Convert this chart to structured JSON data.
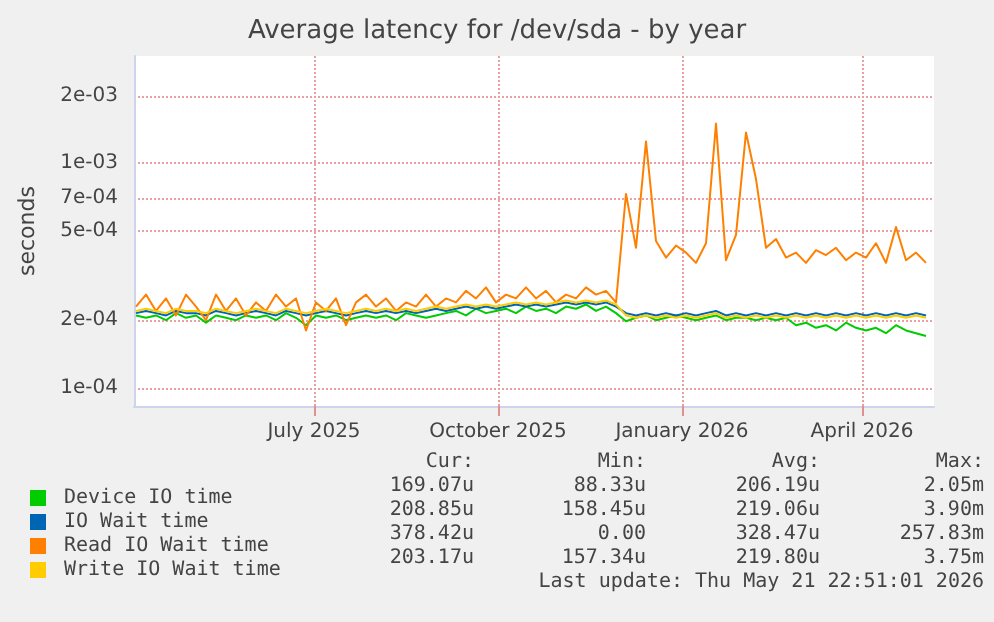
{
  "chart_data": {
    "type": "line",
    "title": "Average latency for /dev/sda - by year",
    "ylabel": "seconds",
    "log": "y",
    "grid": true,
    "legend": "bottom left",
    "marker": "none",
    "line_style": "solid",
    "xlim": [
      "2025-04-02",
      "2026-05-07"
    ],
    "xticks": [
      {
        "value": "2025-07-01",
        "label": "July 2025"
      },
      {
        "value": "2025-10-01",
        "label": "October 2025"
      },
      {
        "value": "2026-01-01",
        "label": "January 2026"
      },
      {
        "value": "2026-04-01",
        "label": "April 2026"
      }
    ],
    "ylim": [
      8.3e-05,
      0.003
    ],
    "yticks": [
      {
        "value": 0.0001,
        "label": "1e-04"
      },
      {
        "value": 0.0002,
        "label": "2e-04"
      },
      {
        "value": 0.0005,
        "label": "5e-04"
      },
      {
        "value": 0.0007,
        "label": "7e-04"
      },
      {
        "value": 0.001,
        "label": "1e-03"
      },
      {
        "value": 0.002,
        "label": "2e-03"
      }
    ],
    "x": [
      "2025-04-03",
      "2025-04-08",
      "2025-04-13",
      "2025-04-18",
      "2025-04-23",
      "2025-04-28",
      "2025-05-03",
      "2025-05-08",
      "2025-05-13",
      "2025-05-18",
      "2025-05-23",
      "2025-05-28",
      "2025-06-02",
      "2025-06-07",
      "2025-06-12",
      "2025-06-17",
      "2025-06-22",
      "2025-06-27",
      "2025-07-02",
      "2025-07-07",
      "2025-07-12",
      "2025-07-17",
      "2025-07-22",
      "2025-07-27",
      "2025-08-01",
      "2025-08-06",
      "2025-08-11",
      "2025-08-16",
      "2025-08-21",
      "2025-08-26",
      "2025-08-31",
      "2025-09-05",
      "2025-09-10",
      "2025-09-15",
      "2025-09-20",
      "2025-09-25",
      "2025-09-30",
      "2025-10-05",
      "2025-10-10",
      "2025-10-15",
      "2025-10-20",
      "2025-10-25",
      "2025-10-30",
      "2025-11-04",
      "2025-11-09",
      "2025-11-14",
      "2025-11-19",
      "2025-11-24",
      "2025-11-29",
      "2025-12-04",
      "2025-12-09",
      "2025-12-14",
      "2025-12-19",
      "2025-12-24",
      "2025-12-29",
      "2026-01-03",
      "2026-01-08",
      "2026-01-13",
      "2026-01-18",
      "2026-01-23",
      "2026-01-28",
      "2026-02-02",
      "2026-02-07",
      "2026-02-12",
      "2026-02-17",
      "2026-02-22",
      "2026-02-27",
      "2026-03-04",
      "2026-03-09",
      "2026-03-14",
      "2026-03-19",
      "2026-03-24",
      "2026-03-29",
      "2026-04-03",
      "2026-04-08",
      "2026-04-13",
      "2026-04-18",
      "2026-04-23",
      "2026-04-28",
      "2026-05-03"
    ],
    "series": [
      {
        "name": "Device IO time",
        "color": "#00cc00",
        "values": [
          0.00021,
          0.000205,
          0.00021,
          0.0002,
          0.000215,
          0.000205,
          0.00021,
          0.000195,
          0.00021,
          0.000205,
          0.0002,
          0.00021,
          0.000205,
          0.00021,
          0.0002,
          0.000215,
          0.000205,
          0.00019,
          0.00021,
          0.000205,
          0.00021,
          0.0002,
          0.000205,
          0.00021,
          0.000205,
          0.00021,
          0.0002,
          0.000215,
          0.00021,
          0.000205,
          0.00021,
          0.000215,
          0.00022,
          0.00021,
          0.000225,
          0.000215,
          0.00022,
          0.000225,
          0.000215,
          0.00023,
          0.00022,
          0.000225,
          0.000215,
          0.00023,
          0.000225,
          0.000235,
          0.00022,
          0.00023,
          0.000215,
          0.000198,
          0.000205,
          0.00021,
          0.0002,
          0.000205,
          0.00021,
          0.000205,
          0.0002,
          0.000205,
          0.00021,
          0.0002,
          0.000205,
          0.000205,
          0.0002,
          0.000205,
          0.0002,
          0.000205,
          0.00019,
          0.000195,
          0.000185,
          0.00019,
          0.00018,
          0.000195,
          0.000185,
          0.00018,
          0.000185,
          0.000175,
          0.00019,
          0.00018,
          0.000175,
          0.00017
        ]
      },
      {
        "name": "IO Wait time",
        "color": "#0066b3",
        "values": [
          0.000215,
          0.00022,
          0.000215,
          0.00021,
          0.00022,
          0.000215,
          0.000215,
          0.00021,
          0.00022,
          0.000215,
          0.00021,
          0.000215,
          0.00022,
          0.000215,
          0.00021,
          0.00022,
          0.000215,
          0.00021,
          0.000215,
          0.00022,
          0.000215,
          0.00021,
          0.000215,
          0.00022,
          0.000215,
          0.00022,
          0.000215,
          0.00022,
          0.000215,
          0.00022,
          0.000225,
          0.00022,
          0.000225,
          0.00023,
          0.000225,
          0.00023,
          0.000225,
          0.00023,
          0.000235,
          0.00023,
          0.000235,
          0.00023,
          0.000235,
          0.00024,
          0.000235,
          0.00024,
          0.000235,
          0.00024,
          0.00023,
          0.000215,
          0.00021,
          0.000215,
          0.00021,
          0.000215,
          0.00021,
          0.000215,
          0.00021,
          0.000215,
          0.00022,
          0.00021,
          0.000215,
          0.00021,
          0.000215,
          0.00021,
          0.000215,
          0.00021,
          0.000215,
          0.00021,
          0.000215,
          0.00021,
          0.000215,
          0.00021,
          0.000215,
          0.00021,
          0.000215,
          0.00021,
          0.000215,
          0.00021,
          0.000215,
          0.00021
        ]
      },
      {
        "name": "Read IO Wait time",
        "color": "#ff8000",
        "values": [
          0.00023,
          0.00026,
          0.00022,
          0.00025,
          0.00021,
          0.00026,
          0.00023,
          0.0002,
          0.00026,
          0.00022,
          0.00025,
          0.00021,
          0.00024,
          0.00022,
          0.00026,
          0.00023,
          0.00025,
          0.00018,
          0.00024,
          0.00022,
          0.00025,
          0.00019,
          0.00024,
          0.00026,
          0.00023,
          0.00025,
          0.00022,
          0.00024,
          0.00023,
          0.00026,
          0.00023,
          0.00025,
          0.00024,
          0.00027,
          0.00025,
          0.00028,
          0.00024,
          0.00026,
          0.00025,
          0.00028,
          0.00025,
          0.00027,
          0.00024,
          0.00026,
          0.00025,
          0.00028,
          0.00026,
          0.00027,
          0.00024,
          0.00073,
          0.00042,
          0.00125,
          0.00045,
          0.00038,
          0.00043,
          0.0004,
          0.00036,
          0.00044,
          0.0015,
          0.00037,
          0.00048,
          0.00137,
          0.00085,
          0.00042,
          0.00046,
          0.00038,
          0.0004,
          0.00036,
          0.00041,
          0.00039,
          0.00042,
          0.00037,
          0.0004,
          0.00038,
          0.00044,
          0.00036,
          0.00052,
          0.00037,
          0.0004,
          0.00036
        ]
      },
      {
        "name": "Write IO Wait time",
        "color": "#ffcc00",
        "values": [
          0.00022,
          0.000225,
          0.00022,
          0.000215,
          0.000225,
          0.00022,
          0.00022,
          0.000215,
          0.000225,
          0.00022,
          0.000215,
          0.00022,
          0.000225,
          0.00022,
          0.000215,
          0.000225,
          0.00022,
          0.000215,
          0.00022,
          0.000225,
          0.00022,
          0.000215,
          0.00022,
          0.000225,
          0.00022,
          0.000225,
          0.00022,
          0.000225,
          0.00022,
          0.000225,
          0.00023,
          0.000225,
          0.00023,
          0.000235,
          0.00023,
          0.000235,
          0.00023,
          0.000235,
          0.00024,
          0.000235,
          0.00024,
          0.000235,
          0.00024,
          0.000245,
          0.00024,
          0.000245,
          0.00024,
          0.000245,
          0.000235,
          0.00021,
          0.000205,
          0.00021,
          0.000205,
          0.00021,
          0.000205,
          0.00021,
          0.000205,
          0.00021,
          0.000215,
          0.000205,
          0.00021,
          0.000205,
          0.00021,
          0.000205,
          0.00021,
          0.000205,
          0.00021,
          0.000205,
          0.00021,
          0.000205,
          0.00021,
          0.000205,
          0.00021,
          0.000205,
          0.00021,
          0.000205,
          0.00021,
          0.000205,
          0.00021,
          0.000205
        ]
      }
    ],
    "annotations": [
      "Cur:",
      "Min:",
      "Avg:",
      "Max:",
      "169.07u",
      "88.33u",
      "206.19u",
      "2.05m",
      "208.85u",
      "158.45u",
      "219.06u",
      "3.90m",
      "378.42u",
      "0.00",
      "328.47u",
      "257.83m",
      "203.17u",
      "157.34u",
      "219.80u",
      "3.75m",
      "Last update: Thu May 21 22:51:01 2026"
    ]
  }
}
